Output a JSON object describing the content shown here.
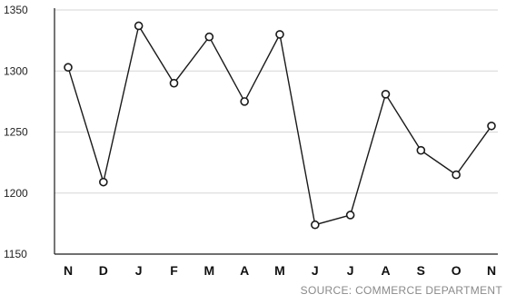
{
  "chart_data": {
    "type": "line",
    "categories": [
      "N",
      "D",
      "J",
      "F",
      "M",
      "A",
      "M",
      "J",
      "J",
      "A",
      "S",
      "O",
      "N"
    ],
    "series": [
      {
        "values": [
          1303,
          1209,
          1337,
          1290,
          1328,
          1275,
          1330,
          1174,
          1182,
          1281,
          1235,
          1215,
          1255
        ]
      }
    ],
    "y_ticks": [
      "1350",
      "1300",
      "1250",
      "1200",
      "1150"
    ],
    "ylim": [
      1150,
      1350
    ],
    "grid": "horizontal",
    "legend": "none",
    "colors": {
      "line": "#1a1a1a",
      "marker_fill": "#ffffff",
      "marker_stroke": "#1a1a1a",
      "grid": "#d6d6d6",
      "axis": "#1a1a1a",
      "source_text": "#8a8a8a"
    }
  },
  "source": "SOURCE: COMMERCE DEPARTMENT"
}
